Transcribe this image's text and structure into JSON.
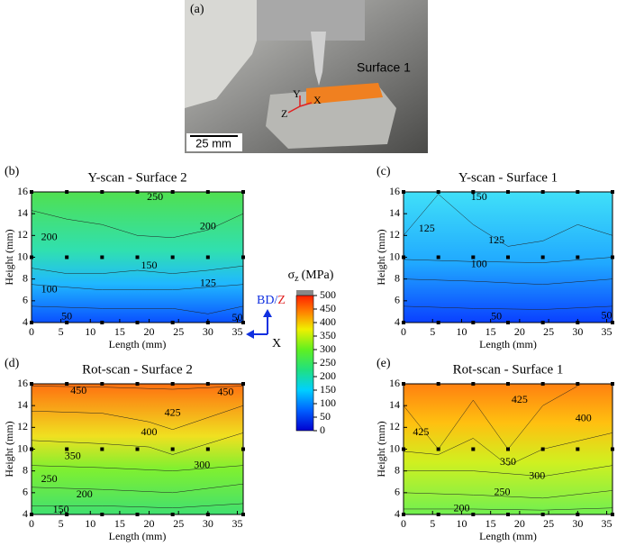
{
  "figure_a": {
    "label": "(a)",
    "surface_label": "Surface 1",
    "scale_bar": "25 mm",
    "axis_y": "Y",
    "axis_z": "Z",
    "axis_x": "X"
  },
  "panels": [
    {
      "label": "(b)",
      "title": "Y-scan - Surface 2",
      "x_label": "Length (mm)",
      "y_label": "Height (mm)",
      "xlim": [
        0,
        36
      ],
      "ylim": [
        4,
        16
      ],
      "xticks": [
        0,
        5,
        10,
        15,
        20,
        25,
        30,
        35
      ],
      "yticks": [
        4,
        6,
        8,
        10,
        12,
        14,
        16
      ],
      "contour_labels": [
        "250",
        "200",
        "200",
        "150",
        "125",
        "100",
        "50",
        "50"
      ]
    },
    {
      "label": "(c)",
      "title": "Y-scan - Surface 1",
      "x_label": "Length (mm)",
      "y_label": "Height (mm)",
      "xlim": [
        0,
        36
      ],
      "ylim": [
        4,
        16
      ],
      "xticks": [
        0,
        5,
        10,
        15,
        20,
        25,
        30,
        35
      ],
      "yticks": [
        4,
        6,
        8,
        10,
        12,
        14,
        16
      ],
      "contour_labels": [
        "150",
        "125",
        "125",
        "100",
        "50",
        "50"
      ]
    },
    {
      "label": "(d)",
      "title": "Rot-scan - Surface 2",
      "x_label": "Length (mm)",
      "y_label": "Height (mm)",
      "xlim": [
        0,
        36
      ],
      "ylim": [
        4,
        16
      ],
      "xticks": [
        0,
        5,
        10,
        15,
        20,
        25,
        30,
        35
      ],
      "yticks": [
        4,
        6,
        8,
        10,
        12,
        14,
        16
      ],
      "contour_labels": [
        "450",
        "450",
        "425",
        "400",
        "350",
        "300",
        "250",
        "200",
        "150"
      ]
    },
    {
      "label": "(e)",
      "title": "Rot-scan - Surface 1",
      "x_label": "Length (mm)",
      "y_label": "Height (mm)",
      "xlim": [
        0,
        36
      ],
      "ylim": [
        4,
        16
      ],
      "xticks": [
        0,
        5,
        10,
        15,
        20,
        25,
        30,
        35
      ],
      "yticks": [
        4,
        6,
        8,
        10,
        12,
        14,
        16
      ],
      "contour_labels": [
        "425",
        "425",
        "400",
        "350",
        "300",
        "250",
        "200"
      ]
    }
  ],
  "colorbar": {
    "symbol": "σ",
    "subscript": "z",
    "unit": "(MPa)",
    "lim": [
      0,
      500
    ],
    "ticks": [
      0,
      50,
      100,
      150,
      200,
      250,
      300,
      350,
      400,
      450,
      500
    ]
  },
  "orientation": {
    "bd": "BD/",
    "z": "Z",
    "x": "X"
  }
}
